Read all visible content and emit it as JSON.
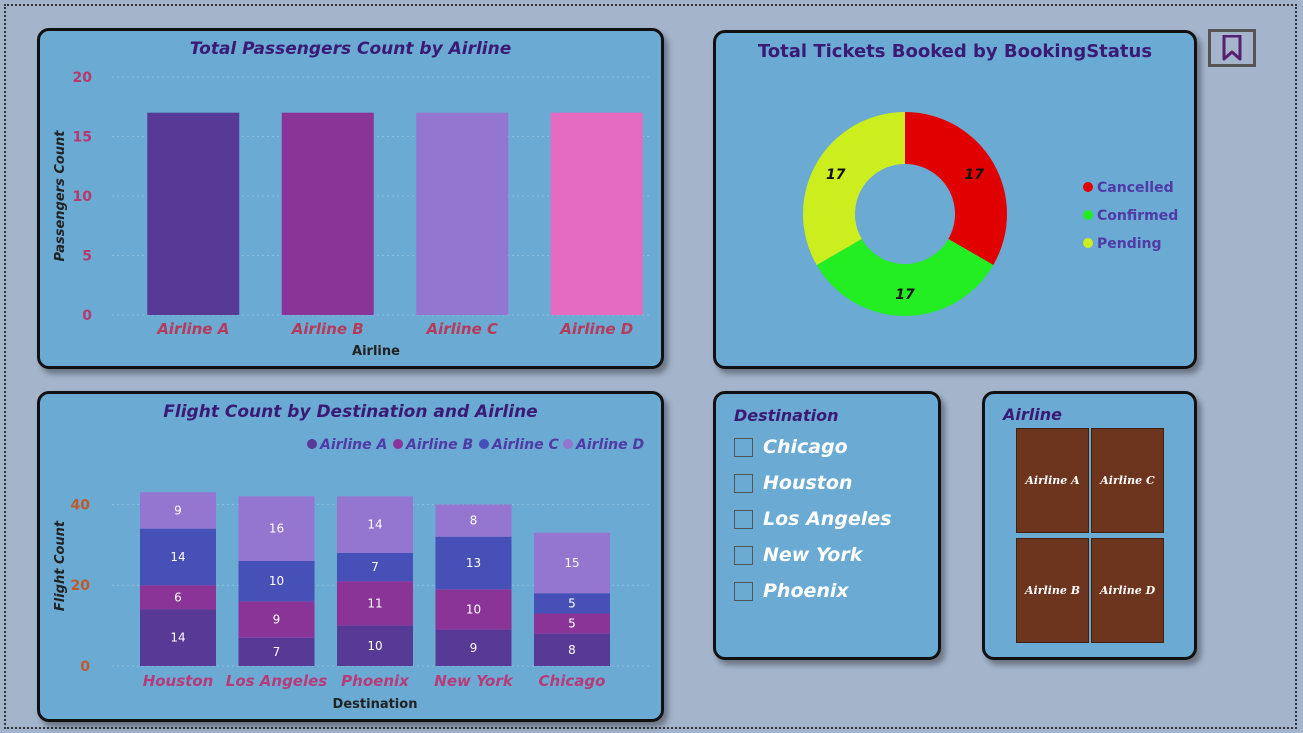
{
  "chart_data": [
    {
      "type": "bar",
      "title": "Total Passengers Count by Airline",
      "xlabel": "Airline",
      "ylabel": "Passengers Count",
      "categories": [
        "Airline A",
        "Airline B",
        "Airline C",
        "Airline D"
      ],
      "values": [
        17,
        17,
        17,
        17
      ],
      "colors": [
        "#573a95",
        "#8a3498",
        "#9475d0",
        "#e56bc0"
      ],
      "yticks": [
        "0",
        "5",
        "10",
        "15",
        "20"
      ],
      "ylim": [
        0,
        20
      ],
      "grid": true
    },
    {
      "type": "pie",
      "subtype": "donut",
      "title": "Total Tickets Booked by BookingStatus",
      "labels": [
        "Cancelled",
        "Confirmed",
        "Pending"
      ],
      "values": [
        17,
        17,
        17
      ],
      "data_labels": [
        "17",
        "17",
        "17"
      ],
      "colors": [
        "#e00000",
        "#22ee22",
        "#cdee1e"
      ],
      "legend": "right"
    },
    {
      "type": "bar",
      "subtype": "stacked",
      "title": "Flight Count by Destination and Airline",
      "xlabel": "Destination",
      "ylabel": "Flight Count",
      "categories": [
        "Houston",
        "Los Angeles",
        "Phoenix",
        "New York",
        "Chicago"
      ],
      "series": [
        {
          "name": "Airline A",
          "color": "#573a95",
          "values": [
            14,
            7,
            10,
            9,
            8
          ]
        },
        {
          "name": "Airline B",
          "color": "#8a3498",
          "values": [
            6,
            9,
            11,
            10,
            5
          ]
        },
        {
          "name": "Airline C",
          "color": "#4650b6",
          "values": [
            14,
            10,
            7,
            13,
            5
          ]
        },
        {
          "name": "Airline D",
          "color": "#9475d0",
          "values": [
            9,
            16,
            14,
            8,
            15
          ]
        }
      ],
      "yticks": [
        "0",
        "20",
        "40"
      ],
      "ylim": [
        0,
        50
      ],
      "legend": "top-right",
      "grid": true
    }
  ],
  "destination_slicer": {
    "title": "Destination",
    "items": [
      "Chicago",
      "Houston",
      "Los Angeles",
      "New York",
      "Phoenix"
    ]
  },
  "airline_slicer": {
    "title": "Airline",
    "tiles": [
      "Airline A",
      "Airline C",
      "Airline B",
      "Airline D"
    ]
  },
  "toolbar": {
    "bookmark_icon": "bookmark-icon"
  },
  "colors": {
    "page_bg": "#a3b4cb",
    "panel_bg": "#6aaad3",
    "title": "#3a1a75",
    "tick_y": "#b8386a",
    "tick_x": "#b83a5a",
    "legend_text": "#4f3aa6"
  }
}
